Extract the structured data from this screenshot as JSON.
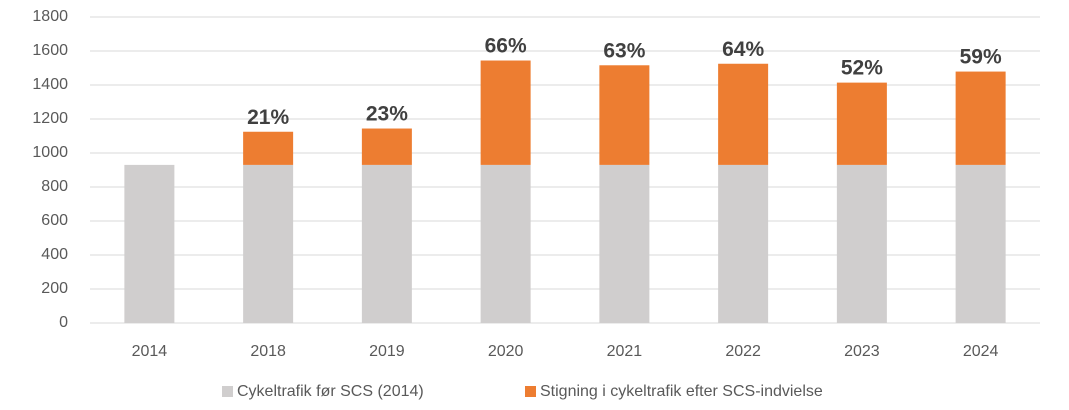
{
  "chart_data": {
    "type": "stacked_bar",
    "categories": [
      "2014",
      "2018",
      "2019",
      "2020",
      "2021",
      "2022",
      "2023",
      "2024"
    ],
    "series": [
      {
        "name": "Cykeltrafik før SCS (2014)",
        "color": "#d0cece",
        "values": [
          930,
          930,
          930,
          930,
          930,
          930,
          930,
          930
        ]
      },
      {
        "name": "Stigning i cykeltrafik efter SCS-indvielse",
        "color": "#ed7d31",
        "values": [
          null,
          195,
          214,
          614,
          586,
          595,
          484,
          549
        ]
      }
    ],
    "annotations": [
      null,
      "21%",
      "23%",
      "66%",
      "63%",
      "64%",
      "52%",
      "59%"
    ],
    "ylim": [
      0,
      1800
    ],
    "yticks": [
      0,
      200,
      400,
      600,
      800,
      1000,
      1200,
      1400,
      1600,
      1800
    ],
    "grid": true,
    "legend": "bottom"
  }
}
